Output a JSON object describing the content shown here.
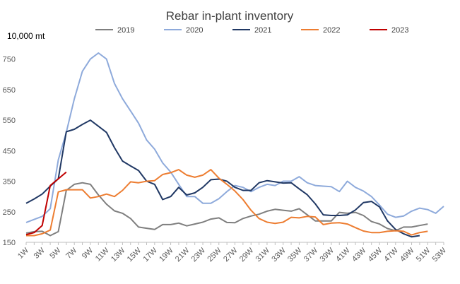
{
  "chart_data": {
    "type": "line",
    "title": "Rebar in-plant inventory",
    "unit_label": "10,000 mt",
    "xlabel": "",
    "ylabel": "",
    "ylim": [
      150,
      800
    ],
    "yticks": [
      150,
      250,
      350,
      450,
      550,
      650,
      750
    ],
    "x": [
      "1W",
      "2W",
      "3W",
      "4W",
      "5W",
      "6W",
      "7W",
      "8W",
      "9W",
      "10W",
      "11W",
      "12W",
      "13W",
      "14W",
      "15W",
      "16W",
      "17W",
      "18W",
      "19W",
      "20W",
      "21W",
      "22W",
      "23W",
      "24W",
      "25W",
      "26W",
      "27W",
      "28W",
      "29W",
      "30W",
      "31W",
      "32W",
      "33W",
      "34W",
      "35W",
      "36W",
      "37W",
      "38W",
      "39W",
      "40W",
      "41W",
      "42W",
      "43W",
      "44W",
      "45W",
      "46W",
      "47W",
      "48W",
      "49W",
      "50W",
      "51W",
      "52W",
      "53W"
    ],
    "x_tick_labels": [
      "1W",
      "3W",
      "5W",
      "7W",
      "9W",
      "11W",
      "13W",
      "15W",
      "17W",
      "19W",
      "21W",
      "23W",
      "25W",
      "27W",
      "29W",
      "31W",
      "33W",
      "35W",
      "37W",
      "39W",
      "41W",
      "43W",
      "45W",
      "47W",
      "49W",
      "51W",
      "53W"
    ],
    "legend_position": "top",
    "grid": false,
    "series": [
      {
        "name": "2019",
        "color": "#7f7f7f",
        "values": [
          180,
          185,
          186,
          172,
          185,
          320,
          340,
          345,
          340,
          305,
          275,
          253,
          245,
          228,
          200,
          196,
          192,
          208,
          208,
          213,
          204,
          210,
          216,
          226,
          230,
          215,
          214,
          228,
          236,
          242,
          252,
          258,
          255,
          252,
          260,
          240,
          220,
          220,
          220,
          248,
          245,
          248,
          238,
          218,
          210,
          195,
          188,
          200,
          200,
          205,
          210,
          null,
          null
        ]
      },
      {
        "name": "2020",
        "color": "#8eaadb",
        "values": [
          215,
          225,
          235,
          260,
          420,
          510,
          620,
          710,
          750,
          770,
          750,
          670,
          620,
          580,
          540,
          485,
          455,
          410,
          380,
          340,
          300,
          300,
          278,
          278,
          293,
          316,
          336,
          330,
          316,
          330,
          340,
          336,
          350,
          350,
          365,
          345,
          336,
          334,
          332,
          316,
          350,
          330,
          318,
          300,
          272,
          242,
          232,
          236,
          252,
          262,
          257,
          245,
          268
        ]
      },
      {
        "name": "2021",
        "color": "#203864",
        "values": [
          278,
          292,
          308,
          334,
          358,
          512,
          520,
          536,
          550,
          530,
          510,
          460,
          416,
          400,
          385,
          350,
          340,
          290,
          300,
          330,
          305,
          312,
          330,
          355,
          357,
          350,
          330,
          320,
          320,
          345,
          352,
          348,
          344,
          345,
          325,
          306,
          276,
          240,
          238,
          238,
          240,
          256,
          280,
          284,
          266,
          220,
          192,
          178,
          168,
          172,
          null,
          null,
          null
        ]
      },
      {
        "name": "2022",
        "color": "#ed7d31",
        "values": [
          172,
          172,
          178,
          190,
          315,
          322,
          322,
          322,
          295,
          300,
          308,
          300,
          320,
          348,
          345,
          350,
          352,
          372,
          378,
          388,
          370,
          363,
          370,
          388,
          360,
          340,
          318,
          290,
          255,
          228,
          216,
          212,
          216,
          232,
          230,
          235,
          233,
          208,
          213,
          214,
          210,
          198,
          187,
          182,
          182,
          186,
          188,
          186,
          174,
          182,
          186,
          null,
          null
        ]
      },
      {
        "name": "2023",
        "color": "#c00000",
        "values": [
          175,
          182,
          205,
          336,
          358,
          380,
          null,
          null,
          null,
          null,
          null,
          null,
          null,
          null,
          null,
          null,
          null,
          null,
          null,
          null,
          null,
          null,
          null,
          null,
          null,
          null,
          null,
          null,
          null,
          null,
          null,
          null,
          null,
          null,
          null,
          null,
          null,
          null,
          null,
          null,
          null,
          null,
          null,
          null,
          null,
          null,
          null,
          null,
          null,
          null,
          null,
          null,
          null
        ]
      }
    ]
  }
}
